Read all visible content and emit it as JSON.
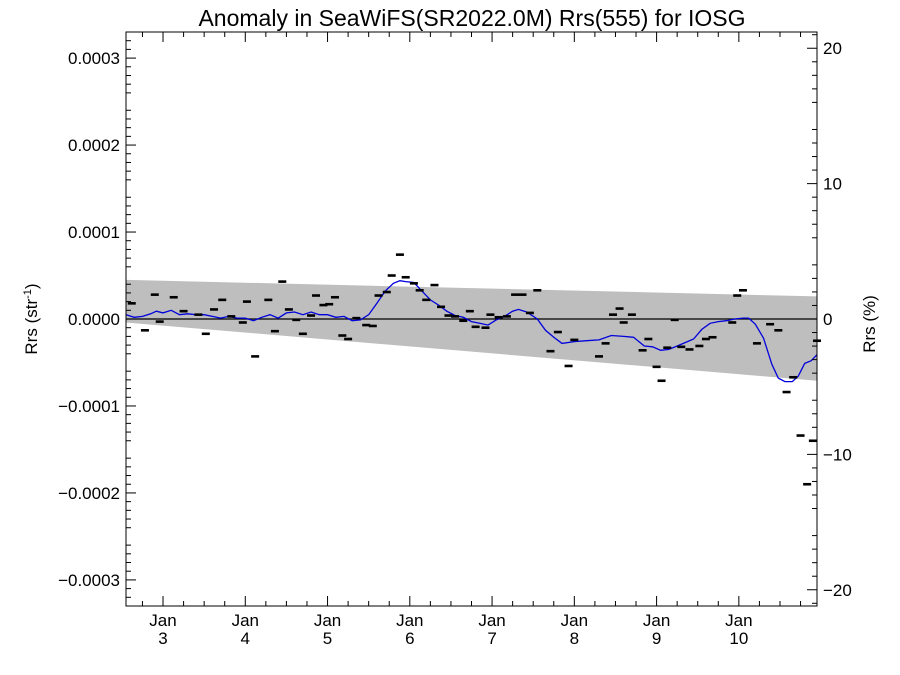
{
  "chart_data": {
    "type": "scatter",
    "title": "Anomaly in SeaWiFS(SR2022.0M) Rrs(555) for IOSG",
    "ylabel_left": "Rrs (str",
    "ylabel_left_sup": "-1",
    "ylabel_left_close": ")",
    "ylabel_right": "Rrs (%)",
    "x_unit": "day",
    "xlim": [
      2.55,
      10.95
    ],
    "ylim_left": [
      -0.00033,
      0.00033
    ],
    "ylim_right": [
      -21.2,
      21.2
    ],
    "x_ticks": [
      {
        "x": 3,
        "top": "Jan",
        "bottom": "3"
      },
      {
        "x": 4,
        "top": "Jan",
        "bottom": "4"
      },
      {
        "x": 5,
        "top": "Jan",
        "bottom": "5"
      },
      {
        "x": 6,
        "top": "Jan",
        "bottom": "6"
      },
      {
        "x": 7,
        "top": "Jan",
        "bottom": "7"
      },
      {
        "x": 8,
        "top": "Jan",
        "bottom": "8"
      },
      {
        "x": 9,
        "top": "Jan",
        "bottom": "9"
      },
      {
        "x": 10,
        "top": "Jan",
        "bottom": "10"
      }
    ],
    "y_ticks_left": [
      {
        "v": 0.0003,
        "label": "0.0003"
      },
      {
        "v": 0.0002,
        "label": "0.0002"
      },
      {
        "v": 0.0001,
        "label": "0.0001"
      },
      {
        "v": 0.0,
        "label": "0.0000"
      },
      {
        "v": -0.0001,
        "label": "−0.0001"
      },
      {
        "v": -0.0002,
        "label": "−0.0002"
      },
      {
        "v": -0.0003,
        "label": "−0.0003"
      }
    ],
    "y_ticks_right": [
      {
        "v": 20,
        "label": "20"
      },
      {
        "v": 10,
        "label": "10"
      },
      {
        "v": 0,
        "label": "0"
      },
      {
        "v": -10,
        "label": "−10"
      },
      {
        "v": -20,
        "label": "−20"
      }
    ],
    "zero_line": 0,
    "band": {
      "upper": [
        [
          2.55,
          4.5e-05
        ],
        [
          10.95,
          2.6e-05
        ]
      ],
      "lower": [
        [
          2.55,
          -4e-06
        ],
        [
          10.95,
          -7.1e-05
        ]
      ]
    },
    "colors": {
      "band": "#bebebe",
      "points": "#000000",
      "smooth": "#0000dd",
      "zero": "#000000"
    },
    "points": [
      [
        2.62,
        1.8e-05
      ],
      [
        2.78,
        -1.3e-05
      ],
      [
        2.9,
        2.8e-05
      ],
      [
        2.96,
        -3e-06
      ],
      [
        3.13,
        2.5e-05
      ],
      [
        3.25,
        9e-06
      ],
      [
        3.43,
        5e-06
      ],
      [
        3.52,
        -1.7e-05
      ],
      [
        3.62,
        1.1e-05
      ],
      [
        3.72,
        2.2e-05
      ],
      [
        3.83,
        3e-06
      ],
      [
        3.97,
        -4e-06
      ],
      [
        4.02,
        2e-05
      ],
      [
        4.12,
        -4.3e-05
      ],
      [
        4.28,
        2.2e-05
      ],
      [
        4.36,
        -1.4e-05
      ],
      [
        4.45,
        4.3e-05
      ],
      [
        4.53,
        1.1e-05
      ],
      [
        4.62,
        -1e-06
      ],
      [
        4.7,
        -1.7e-05
      ],
      [
        4.8,
        4e-06
      ],
      [
        4.86,
        2.7e-05
      ],
      [
        4.95,
        1.6e-05
      ],
      [
        5.02,
        1.7e-05
      ],
      [
        5.09,
        2.5e-05
      ],
      [
        5.18,
        -1.9e-05
      ],
      [
        5.25,
        -2.3e-05
      ],
      [
        5.35,
        1e-06
      ],
      [
        5.47,
        -7e-06
      ],
      [
        5.55,
        -8e-06
      ],
      [
        5.62,
        2.7e-05
      ],
      [
        5.72,
        3.1e-05
      ],
      [
        5.78,
        5e-05
      ],
      [
        5.88,
        7.4e-05
      ],
      [
        5.95,
        4.8e-05
      ],
      [
        6.05,
        4.1e-05
      ],
      [
        6.12,
        3.3e-05
      ],
      [
        6.2,
        2.2e-05
      ],
      [
        6.3,
        3.9e-05
      ],
      [
        6.38,
        1.4e-05
      ],
      [
        6.47,
        4e-06
      ],
      [
        6.55,
        3e-06
      ],
      [
        6.65,
        -2e-06
      ],
      [
        6.73,
        9e-06
      ],
      [
        6.8,
        -9e-06
      ],
      [
        6.92,
        -1e-05
      ],
      [
        6.98,
        5e-06
      ],
      [
        7.08,
        2e-06
      ],
      [
        7.18,
        3e-06
      ],
      [
        7.28,
        2.8e-05
      ],
      [
        7.37,
        2.8e-05
      ],
      [
        7.46,
        7e-06
      ],
      [
        7.55,
        3.3e-05
      ],
      [
        7.71,
        -3.7e-05
      ],
      [
        7.8,
        -1.5e-05
      ],
      [
        7.93,
        -5.4e-05
      ],
      [
        8.0,
        -2.4e-05
      ],
      [
        8.3,
        -4.3e-05
      ],
      [
        8.38,
        -2.8e-05
      ],
      [
        8.47,
        5e-06
      ],
      [
        8.55,
        1.2e-05
      ],
      [
        8.6,
        -4e-06
      ],
      [
        8.7,
        5e-06
      ],
      [
        8.83,
        -3.6e-05
      ],
      [
        8.9,
        -2.3e-05
      ],
      [
        9.0,
        -5.5e-05
      ],
      [
        9.06,
        -7.1e-05
      ],
      [
        9.13,
        -3.3e-05
      ],
      [
        9.22,
        -1e-06
      ],
      [
        9.3,
        -3.2e-05
      ],
      [
        9.4,
        -3.5e-05
      ],
      [
        9.52,
        -3.1e-05
      ],
      [
        9.6,
        -2.3e-05
      ],
      [
        9.68,
        -2.1e-05
      ],
      [
        9.92,
        -4e-06
      ],
      [
        9.98,
        2.7e-05
      ],
      [
        10.05,
        3.3e-05
      ],
      [
        10.22,
        -2.8e-05
      ],
      [
        10.38,
        -6e-06
      ],
      [
        10.48,
        -1.3e-05
      ],
      [
        10.58,
        -8.4e-05
      ],
      [
        10.66,
        -6.7e-05
      ],
      [
        10.75,
        -0.000134
      ],
      [
        10.83,
        -0.00019
      ],
      [
        10.9,
        -0.00014
      ],
      [
        10.95,
        -2.5e-05
      ]
    ],
    "smooth": [
      [
        2.55,
        5e-06
      ],
      [
        2.65,
        2e-06
      ],
      [
        2.75,
        3e-06
      ],
      [
        2.85,
        6e-06
      ],
      [
        2.92,
        9e-06
      ],
      [
        3.0,
        7e-06
      ],
      [
        3.1,
        1e-05
      ],
      [
        3.2,
        5e-06
      ],
      [
        3.3,
        6e-06
      ],
      [
        3.4,
        5e-06
      ],
      [
        3.5,
        5e-06
      ],
      [
        3.6,
        3e-06
      ],
      [
        3.7,
        1e-06
      ],
      [
        3.8,
        3e-06
      ],
      [
        3.9,
        1e-06
      ],
      [
        4.0,
        1e-06
      ],
      [
        4.1,
        -2e-06
      ],
      [
        4.2,
        2e-06
      ],
      [
        4.3,
        5e-06
      ],
      [
        4.4,
        1e-06
      ],
      [
        4.5,
        7e-06
      ],
      [
        4.6,
        8e-06
      ],
      [
        4.7,
        5e-06
      ],
      [
        4.8,
        8e-06
      ],
      [
        4.9,
        5e-06
      ],
      [
        5.0,
        5e-06
      ],
      [
        5.1,
        2e-06
      ],
      [
        5.2,
        3e-06
      ],
      [
        5.3,
        -2e-06
      ],
      [
        5.4,
        -1e-06
      ],
      [
        5.5,
        5e-06
      ],
      [
        5.6,
        1.8e-05
      ],
      [
        5.7,
        3.2e-05
      ],
      [
        5.8,
        4.1e-05
      ],
      [
        5.88,
        4.4e-05
      ],
      [
        5.95,
        4.3e-05
      ],
      [
        6.05,
        4.2e-05
      ],
      [
        6.15,
        3.2e-05
      ],
      [
        6.25,
        2.2e-05
      ],
      [
        6.35,
        1.6e-05
      ],
      [
        6.45,
        9e-06
      ],
      [
        6.55,
        4e-06
      ],
      [
        6.65,
        2e-06
      ],
      [
        6.75,
        -3e-06
      ],
      [
        6.85,
        -5e-06
      ],
      [
        6.95,
        -7e-06
      ],
      [
        7.05,
        -1e-06
      ],
      [
        7.15,
        3e-06
      ],
      [
        7.25,
        9e-06
      ],
      [
        7.32,
        1.1e-05
      ],
      [
        7.42,
        8e-06
      ],
      [
        7.55,
        0.0
      ],
      [
        7.65,
        -1.3e-05
      ],
      [
        7.75,
        -2.1e-05
      ],
      [
        7.85,
        -2.8e-05
      ],
      [
        8.0,
        -2.6e-05
      ],
      [
        8.15,
        -2.5e-05
      ],
      [
        8.3,
        -2.4e-05
      ],
      [
        8.45,
        -1.9e-05
      ],
      [
        8.6,
        -2e-05
      ],
      [
        8.72,
        -2.1e-05
      ],
      [
        8.85,
        -3.1e-05
      ],
      [
        8.95,
        -3.2e-05
      ],
      [
        9.05,
        -3.6e-05
      ],
      [
        9.15,
        -3.5e-05
      ],
      [
        9.25,
        -3.1e-05
      ],
      [
        9.35,
        -2.7e-05
      ],
      [
        9.45,
        -2.3e-05
      ],
      [
        9.55,
        -1.2e-05
      ],
      [
        9.65,
        -5e-06
      ],
      [
        9.75,
        -3e-06
      ],
      [
        9.85,
        -2e-06
      ],
      [
        9.95,
        0.0
      ],
      [
        10.05,
        1e-06
      ],
      [
        10.12,
        1e-06
      ],
      [
        10.2,
        -6e-06
      ],
      [
        10.3,
        -2.2e-05
      ],
      [
        10.4,
        -5.2e-05
      ],
      [
        10.48,
        -6.8e-05
      ],
      [
        10.56,
        -7.2e-05
      ],
      [
        10.65,
        -7.2e-05
      ],
      [
        10.72,
        -6.6e-05
      ],
      [
        10.8,
        -5.1e-05
      ],
      [
        10.88,
        -4.8e-05
      ],
      [
        10.95,
        -4.1e-05
      ]
    ],
    "grid": false,
    "legend": "none"
  }
}
